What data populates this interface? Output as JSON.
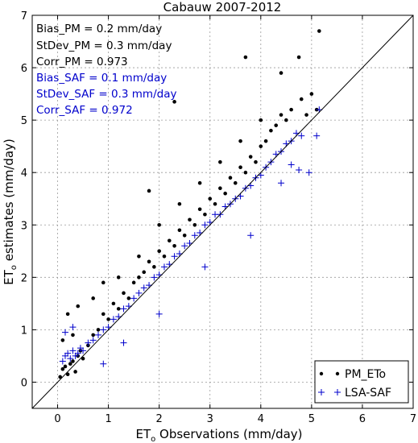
{
  "chart_data": {
    "type": "scatter",
    "title": "Cabauw 2007-2012",
    "xlabel_main": "ET",
    "xlabel_sub": "o",
    "xlabel_rest": " Observations (mm/day)",
    "ylabel_main": "ET",
    "ylabel_sub": "o",
    "ylabel_rest": " estimates (mm/day)",
    "xlim": [
      -0.5,
      7
    ],
    "ylim": [
      -0.5,
      7
    ],
    "xticks": [
      0,
      1,
      2,
      3,
      4,
      5,
      6,
      7
    ],
    "yticks": [
      0,
      1,
      2,
      3,
      4,
      5,
      6,
      7
    ],
    "grid": true,
    "one_to_one_line": true,
    "legend_position": "bottom-right",
    "stats": {
      "pm": [
        "Bias_PM =   0.2 mm/day",
        "StDev_PM = 0.3 mm/day",
        "Corr_PM = 0.973"
      ],
      "saf": [
        "Bias_SAF =   0.1 mm/day",
        "StDev_SAF = 0.3 mm/day",
        "Corr_SAF = 0.972"
      ]
    },
    "series": [
      {
        "name": "PM_ETo",
        "marker": "dot",
        "color": "#000000",
        "points": [
          [
            0.05,
            0.1
          ],
          [
            0.1,
            0.25
          ],
          [
            0.15,
            0.3
          ],
          [
            0.2,
            0.15
          ],
          [
            0.25,
            0.35
          ],
          [
            0.3,
            0.4
          ],
          [
            0.35,
            0.2
          ],
          [
            0.4,
            0.5
          ],
          [
            0.45,
            0.6
          ],
          [
            0.5,
            0.45
          ],
          [
            0.3,
            0.9
          ],
          [
            0.2,
            1.3
          ],
          [
            0.1,
            0.8
          ],
          [
            0.6,
            0.7
          ],
          [
            0.7,
            0.9
          ],
          [
            0.8,
            1.0
          ],
          [
            0.9,
            1.3
          ],
          [
            1.0,
            1.2
          ],
          [
            1.1,
            1.5
          ],
          [
            1.2,
            1.4
          ],
          [
            1.3,
            1.7
          ],
          [
            1.4,
            1.6
          ],
          [
            1.5,
            1.9
          ],
          [
            1.6,
            2.0
          ],
          [
            1.7,
            2.1
          ],
          [
            1.8,
            2.3
          ],
          [
            1.9,
            2.2
          ],
          [
            2.0,
            2.5
          ],
          [
            2.1,
            2.4
          ],
          [
            2.2,
            2.7
          ],
          [
            2.3,
            2.6
          ],
          [
            2.4,
            2.9
          ],
          [
            2.5,
            2.8
          ],
          [
            2.6,
            3.1
          ],
          [
            2.7,
            3.0
          ],
          [
            2.8,
            3.3
          ],
          [
            2.9,
            3.2
          ],
          [
            3.0,
            3.5
          ],
          [
            3.1,
            3.4
          ],
          [
            3.2,
            3.7
          ],
          [
            3.3,
            3.6
          ],
          [
            3.4,
            3.9
          ],
          [
            3.5,
            3.8
          ],
          [
            3.6,
            4.1
          ],
          [
            3.7,
            4.0
          ],
          [
            3.8,
            4.3
          ],
          [
            3.9,
            4.2
          ],
          [
            4.0,
            4.5
          ],
          [
            4.1,
            4.6
          ],
          [
            4.2,
            4.8
          ],
          [
            4.3,
            4.9
          ],
          [
            4.4,
            5.1
          ],
          [
            4.5,
            5.0
          ],
          [
            4.6,
            5.2
          ],
          [
            4.8,
            5.4
          ],
          [
            5.0,
            5.5
          ],
          [
            5.15,
            6.7
          ],
          [
            4.75,
            6.2
          ],
          [
            3.7,
            6.2
          ],
          [
            2.3,
            5.35
          ],
          [
            1.8,
            3.65
          ],
          [
            4.4,
            5.9
          ],
          [
            4.9,
            5.1
          ],
          [
            5.1,
            5.2
          ],
          [
            0.4,
            1.45
          ],
          [
            0.7,
            1.6
          ],
          [
            0.9,
            1.9
          ],
          [
            1.2,
            2.0
          ],
          [
            1.6,
            2.4
          ],
          [
            2.0,
            3.0
          ],
          [
            2.4,
            3.4
          ],
          [
            2.8,
            3.8
          ],
          [
            3.2,
            4.2
          ],
          [
            3.6,
            4.6
          ],
          [
            4.0,
            5.0
          ]
        ]
      },
      {
        "name": "LSA-SAF",
        "marker": "plus",
        "color": "#0000cc",
        "points": [
          [
            0.1,
            0.4
          ],
          [
            0.15,
            0.5
          ],
          [
            0.2,
            0.55
          ],
          [
            0.25,
            0.45
          ],
          [
            0.3,
            0.6
          ],
          [
            0.35,
            0.5
          ],
          [
            0.4,
            0.55
          ],
          [
            0.45,
            0.65
          ],
          [
            0.5,
            0.6
          ],
          [
            0.6,
            0.75
          ],
          [
            0.7,
            0.8
          ],
          [
            0.8,
            0.9
          ],
          [
            0.9,
            1.0
          ],
          [
            1.0,
            1.05
          ],
          [
            1.1,
            1.2
          ],
          [
            1.2,
            1.25
          ],
          [
            1.3,
            1.4
          ],
          [
            1.4,
            1.45
          ],
          [
            1.5,
            1.6
          ],
          [
            1.6,
            1.7
          ],
          [
            1.7,
            1.8
          ],
          [
            1.8,
            1.85
          ],
          [
            1.9,
            2.0
          ],
          [
            2.0,
            2.05
          ],
          [
            2.1,
            2.2
          ],
          [
            2.2,
            2.25
          ],
          [
            2.3,
            2.4
          ],
          [
            2.4,
            2.45
          ],
          [
            2.5,
            2.6
          ],
          [
            2.6,
            2.65
          ],
          [
            2.7,
            2.8
          ],
          [
            2.8,
            2.85
          ],
          [
            2.9,
            3.0
          ],
          [
            3.0,
            3.05
          ],
          [
            3.1,
            3.2
          ],
          [
            3.2,
            3.2
          ],
          [
            3.3,
            3.35
          ],
          [
            3.4,
            3.4
          ],
          [
            3.5,
            3.5
          ],
          [
            3.6,
            3.55
          ],
          [
            3.7,
            3.7
          ],
          [
            3.8,
            3.75
          ],
          [
            3.9,
            3.9
          ],
          [
            4.0,
            3.95
          ],
          [
            4.1,
            4.1
          ],
          [
            4.2,
            4.2
          ],
          [
            4.3,
            4.35
          ],
          [
            4.4,
            4.4
          ],
          [
            4.5,
            4.55
          ],
          [
            4.6,
            4.6
          ],
          [
            4.7,
            4.75
          ],
          [
            4.8,
            4.7
          ],
          [
            5.1,
            4.7
          ],
          [
            5.15,
            5.2
          ],
          [
            4.6,
            4.15
          ],
          [
            4.4,
            3.8
          ],
          [
            4.75,
            4.05
          ],
          [
            3.8,
            2.8
          ],
          [
            2.9,
            2.2
          ],
          [
            2.0,
            1.3
          ],
          [
            1.3,
            0.75
          ],
          [
            0.9,
            0.35
          ],
          [
            0.15,
            0.95
          ],
          [
            0.3,
            1.05
          ],
          [
            4.95,
            4.0
          ]
        ]
      }
    ]
  }
}
